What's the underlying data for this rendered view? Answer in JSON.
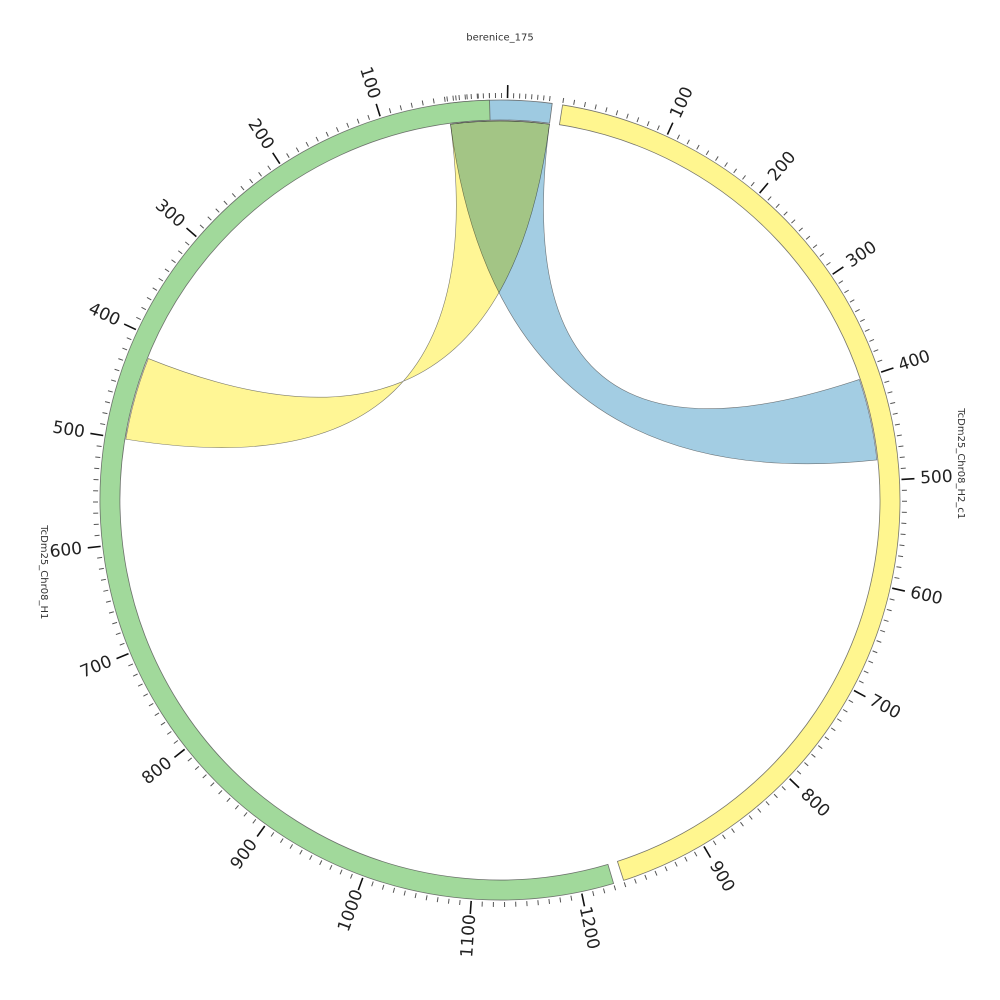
{
  "chart_data": {
    "type": "chord",
    "unit_step": 100,
    "segments": [
      {
        "name": "berenice_175",
        "length": 175,
        "color": "#9ecae1",
        "label_start": 0,
        "ticks": []
      },
      {
        "name": "TcDm25_Chr08_H2_c1",
        "length": 980,
        "color": "#fff68f",
        "label_start": 100,
        "ticks": [
          "100",
          "200",
          "300",
          "400",
          "500",
          "600",
          "700",
          "800",
          "900"
        ]
      },
      {
        "name": "TcDm25_Chr08_H1",
        "length": 1230,
        "color": "#a1d99b",
        "label_start": 100,
        "ticks": [
          "100",
          "200",
          "300",
          "400",
          "500",
          "600",
          "700",
          "800",
          "900",
          "1000",
          "1100",
          "1200"
        ]
      }
    ],
    "links": [
      {
        "source": "berenice_175",
        "source_range": [
          0,
          175
        ],
        "target": "TcDm25_Chr08_H2_c1",
        "target_range": [
          400,
          480
        ],
        "color": "#9ecae1"
      },
      {
        "source": "berenice_175",
        "source_range": [
          0,
          175
        ],
        "target": "TcDm25_Chr08_H1",
        "target_range": [
          420,
          500
        ],
        "color": "#fff68f"
      }
    ]
  }
}
